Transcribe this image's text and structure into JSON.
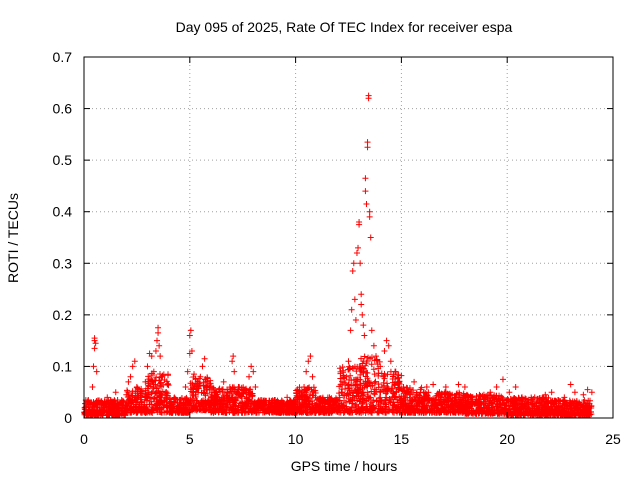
{
  "chart_data": {
    "type": "scatter",
    "title": "Day 095 of 2025, Rate Of TEC Index for receiver espa",
    "xlabel": "GPS time / hours",
    "ylabel": "ROTI / TECUs",
    "xlim": [
      0,
      25
    ],
    "ylim": [
      0,
      0.7
    ],
    "xticks": [
      0,
      5,
      10,
      15,
      20,
      25
    ],
    "yticks": [
      0,
      0.1,
      0.2,
      0.3,
      0.4,
      0.5,
      0.6,
      0.7
    ],
    "xtick_labels": [
      "0",
      "5",
      "10",
      "15",
      "20",
      "25"
    ],
    "ytick_labels": [
      "0",
      "0.1",
      "0.2",
      "0.3",
      "0.4",
      "0.5",
      "0.6",
      "0.7"
    ],
    "grid": true,
    "marker": "+",
    "color": "#ff0000",
    "series": [
      {
        "name": "ROTI",
        "points": [
          [
            0.05,
            0.02
          ],
          [
            0.2,
            0.035
          ],
          [
            0.4,
            0.06
          ],
          [
            0.45,
            0.1
          ],
          [
            0.5,
            0.135
          ],
          [
            0.5,
            0.15
          ],
          [
            0.5,
            0.155
          ],
          [
            0.55,
            0.145
          ],
          [
            0.6,
            0.09
          ],
          [
            0.7,
            0.03
          ],
          [
            0.9,
            0.025
          ],
          [
            1.1,
            0.04
          ],
          [
            1.3,
            0.02
          ],
          [
            1.5,
            0.05
          ],
          [
            1.7,
            0.03
          ],
          [
            2.0,
            0.045
          ],
          [
            2.1,
            0.07
          ],
          [
            2.2,
            0.08
          ],
          [
            2.3,
            0.1
          ],
          [
            2.4,
            0.11
          ],
          [
            2.5,
            0.06
          ],
          [
            2.7,
            0.03
          ],
          [
            2.9,
            0.07
          ],
          [
            3.0,
            0.1
          ],
          [
            3.1,
            0.125
          ],
          [
            3.2,
            0.12
          ],
          [
            3.3,
            0.09
          ],
          [
            3.4,
            0.13
          ],
          [
            3.45,
            0.15
          ],
          [
            3.5,
            0.175
          ],
          [
            3.5,
            0.165
          ],
          [
            3.55,
            0.14
          ],
          [
            3.6,
            0.12
          ],
          [
            3.7,
            0.08
          ],
          [
            3.9,
            0.04
          ],
          [
            4.2,
            0.025
          ],
          [
            4.5,
            0.035
          ],
          [
            4.7,
            0.03
          ],
          [
            4.8,
            0.06
          ],
          [
            4.9,
            0.09
          ],
          [
            5.0,
            0.125
          ],
          [
            5.0,
            0.16
          ],
          [
            5.05,
            0.17
          ],
          [
            5.1,
            0.13
          ],
          [
            5.2,
            0.085
          ],
          [
            5.4,
            0.06
          ],
          [
            5.5,
            0.08
          ],
          [
            5.6,
            0.1
          ],
          [
            5.7,
            0.115
          ],
          [
            5.8,
            0.07
          ],
          [
            6.0,
            0.04
          ],
          [
            6.2,
            0.03
          ],
          [
            6.4,
            0.055
          ],
          [
            6.6,
            0.07
          ],
          [
            6.8,
            0.05
          ],
          [
            7.0,
            0.11
          ],
          [
            7.05,
            0.12
          ],
          [
            7.1,
            0.09
          ],
          [
            7.3,
            0.06
          ],
          [
            7.6,
            0.03
          ],
          [
            7.8,
            0.08
          ],
          [
            7.9,
            0.1
          ],
          [
            8.0,
            0.09
          ],
          [
            8.1,
            0.06
          ],
          [
            8.4,
            0.03
          ],
          [
            8.7,
            0.02
          ],
          [
            9.0,
            0.035
          ],
          [
            9.3,
            0.03
          ],
          [
            9.6,
            0.04
          ],
          [
            9.9,
            0.025
          ],
          [
            10.2,
            0.04
          ],
          [
            10.4,
            0.06
          ],
          [
            10.5,
            0.09
          ],
          [
            10.6,
            0.11
          ],
          [
            10.7,
            0.12
          ],
          [
            10.8,
            0.08
          ],
          [
            11.0,
            0.035
          ],
          [
            11.3,
            0.03
          ],
          [
            11.6,
            0.04
          ],
          [
            11.9,
            0.03
          ],
          [
            12.2,
            0.05
          ],
          [
            12.4,
            0.08
          ],
          [
            12.5,
            0.11
          ],
          [
            12.6,
            0.17
          ],
          [
            12.65,
            0.21
          ],
          [
            12.7,
            0.285
          ],
          [
            12.75,
            0.3
          ],
          [
            12.8,
            0.23
          ],
          [
            12.85,
            0.19
          ],
          [
            12.9,
            0.32
          ],
          [
            12.95,
            0.33
          ],
          [
            13.0,
            0.375
          ],
          [
            13.0,
            0.38
          ],
          [
            13.05,
            0.3
          ],
          [
            13.1,
            0.24
          ],
          [
            13.1,
            0.22
          ],
          [
            13.15,
            0.2
          ],
          [
            13.2,
            0.18
          ],
          [
            13.25,
            0.16
          ],
          [
            13.3,
            0.44
          ],
          [
            13.3,
            0.465
          ],
          [
            13.35,
            0.415
          ],
          [
            13.4,
            0.525
          ],
          [
            13.4,
            0.535
          ],
          [
            13.45,
            0.62
          ],
          [
            13.45,
            0.625
          ],
          [
            13.5,
            0.4
          ],
          [
            13.5,
            0.39
          ],
          [
            13.55,
            0.35
          ],
          [
            13.6,
            0.17
          ],
          [
            13.7,
            0.14
          ],
          [
            13.8,
            0.12
          ],
          [
            14.0,
            0.1
          ],
          [
            14.2,
            0.13
          ],
          [
            14.3,
            0.15
          ],
          [
            14.4,
            0.14
          ],
          [
            14.5,
            0.11
          ],
          [
            14.7,
            0.09
          ],
          [
            14.9,
            0.07
          ],
          [
            15.1,
            0.06
          ],
          [
            15.3,
            0.05
          ],
          [
            15.6,
            0.07
          ],
          [
            15.9,
            0.05
          ],
          [
            16.2,
            0.06
          ],
          [
            16.5,
            0.065
          ],
          [
            16.8,
            0.05
          ],
          [
            17.1,
            0.06
          ],
          [
            17.4,
            0.045
          ],
          [
            17.7,
            0.065
          ],
          [
            18.0,
            0.06
          ],
          [
            18.3,
            0.04
          ],
          [
            18.6,
            0.03
          ],
          [
            18.9,
            0.045
          ],
          [
            19.2,
            0.05
          ],
          [
            19.5,
            0.06
          ],
          [
            19.8,
            0.075
          ],
          [
            20.1,
            0.05
          ],
          [
            20.4,
            0.06
          ],
          [
            20.7,
            0.04
          ],
          [
            21.0,
            0.03
          ],
          [
            21.3,
            0.04
          ],
          [
            21.6,
            0.025
          ],
          [
            21.8,
            0.045
          ],
          [
            22.1,
            0.05
          ],
          [
            22.4,
            0.035
          ],
          [
            22.7,
            0.04
          ],
          [
            23.0,
            0.065
          ],
          [
            23.2,
            0.05
          ],
          [
            23.4,
            0.03
          ],
          [
            23.6,
            0.045
          ],
          [
            23.8,
            0.055
          ],
          [
            24.0,
            0.05
          ]
        ],
        "bands": [
          [
            0.0,
            2.0,
            0.005,
            0.035
          ],
          [
            2.0,
            3.0,
            0.01,
            0.06
          ],
          [
            3.0,
            4.0,
            0.01,
            0.09
          ],
          [
            4.0,
            5.0,
            0.01,
            0.04
          ],
          [
            5.0,
            6.0,
            0.015,
            0.08
          ],
          [
            6.0,
            8.0,
            0.01,
            0.06
          ],
          [
            8.0,
            10.0,
            0.01,
            0.035
          ],
          [
            10.0,
            11.0,
            0.01,
            0.06
          ],
          [
            11.0,
            12.0,
            0.01,
            0.04
          ],
          [
            12.0,
            13.0,
            0.01,
            0.1
          ],
          [
            13.0,
            14.0,
            0.01,
            0.12
          ],
          [
            14.0,
            15.0,
            0.01,
            0.09
          ],
          [
            15.0,
            16.0,
            0.01,
            0.06
          ],
          [
            16.0,
            18.0,
            0.01,
            0.05
          ],
          [
            18.0,
            20.0,
            0.008,
            0.045
          ],
          [
            20.0,
            22.0,
            0.005,
            0.04
          ],
          [
            22.0,
            24.0,
            0.005,
            0.035
          ]
        ]
      }
    ]
  }
}
